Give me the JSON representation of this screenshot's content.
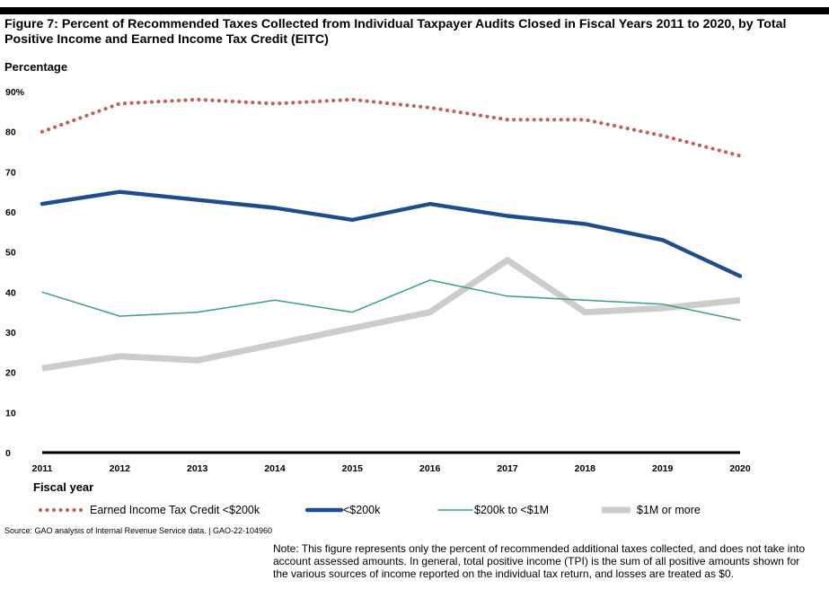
{
  "title": "Figure 7: Percent of Recommended Taxes Collected from Individual Taxpayer Audits Closed in Fiscal Years 2011 to 2020, by Total Positive Income and Earned Income Tax Credit (EITC)",
  "source": "Source: GAO analysis of Internal Revenue Service data.  |  GAO-22-104960",
  "note": "Note: This figure represents only the percent of recommended additional taxes collected, and does not take into account assessed amounts. In general, total positive income (TPI) is the sum of all positive amounts shown for the various sources of income reported on the individual tax return, and losses are treated as $0.",
  "chart_data": {
    "type": "line",
    "title": "Percent of Recommended Taxes Collected from Individual Taxpayer Audits Closed in Fiscal Years 2011 to 2020",
    "xlabel": "Fiscal year",
    "ylabel": "Percentage",
    "ylim": [
      0,
      90
    ],
    "yticks": [
      0,
      10,
      20,
      30,
      40,
      50,
      60,
      70,
      80,
      90
    ],
    "ytick_labels": [
      "0",
      "10",
      "20",
      "30",
      "40",
      "50",
      "60",
      "70",
      "80",
      "90%"
    ],
    "categories": [
      "2011",
      "2012",
      "2013",
      "2014",
      "2015",
      "2016",
      "2017",
      "2018",
      "2019",
      "2020"
    ],
    "grid": false,
    "legend_position": "bottom",
    "series": [
      {
        "name": "Earned Income Tax Credit <$200k",
        "values": [
          80,
          87,
          88,
          87,
          88,
          86,
          83,
          83,
          79,
          74
        ],
        "color": "#c0625a",
        "style": "dotted"
      },
      {
        "name": "<$200k",
        "values": [
          62,
          65,
          63,
          61,
          58,
          62,
          59,
          57,
          53,
          44
        ],
        "color": "#1e4d8c",
        "style": "thick"
      },
      {
        "name": "$200k to <$1M",
        "values": [
          40,
          34,
          35,
          38,
          35,
          43,
          39,
          38,
          37,
          33
        ],
        "color": "#3a9e90",
        "style": "thin"
      },
      {
        "name": "$1M or more",
        "values": [
          21,
          24,
          23,
          27,
          31,
          35,
          48,
          35,
          36,
          38
        ],
        "color": "#cccccc",
        "style": "wide"
      }
    ]
  }
}
